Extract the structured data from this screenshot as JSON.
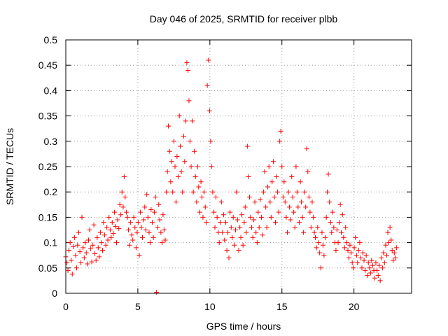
{
  "chart_data": {
    "type": "scatter",
    "title": "Day 046 of 2025, SRMTID for receiver plbb",
    "xlabel": "GPS time / hours",
    "ylabel": "SRMTID / TECUs",
    "xlim": [
      0,
      24
    ],
    "ylim": [
      0,
      0.5
    ],
    "xticks": [
      0,
      5,
      10,
      15,
      20
    ],
    "xtick_labels": [
      "0",
      "5",
      "10",
      "15",
      "20"
    ],
    "yticks": [
      0,
      0.05,
      0.1,
      0.15,
      0.2,
      0.25,
      0.3,
      0.35,
      0.4,
      0.45,
      0.5
    ],
    "ytick_labels": [
      "0",
      "0.05",
      "0.1",
      "0.15",
      "0.2",
      "0.25",
      "0.3",
      "0.35",
      "0.4",
      "0.45",
      "0.5"
    ],
    "grid": true,
    "marker": "+",
    "marker_color": "#ff0000",
    "series": [
      {
        "name": "SRMTID",
        "points": [
          [
            0.0,
            0.072
          ],
          [
            0.08,
            0.06
          ],
          [
            0.15,
            0.045
          ],
          [
            0.22,
            0.085
          ],
          [
            0.3,
            0.1
          ],
          [
            0.38,
            0.065
          ],
          [
            0.45,
            0.038
          ],
          [
            0.52,
            0.092
          ],
          [
            0.6,
            0.11
          ],
          [
            0.68,
            0.075
          ],
          [
            0.75,
            0.05
          ],
          [
            0.82,
            0.095
          ],
          [
            0.9,
            0.12
          ],
          [
            0.98,
            0.082
          ],
          [
            1.05,
            0.06
          ],
          [
            1.12,
            0.15
          ],
          [
            1.2,
            0.09
          ],
          [
            1.28,
            0.07
          ],
          [
            1.35,
            0.1
          ],
          [
            1.42,
            0.08
          ],
          [
            1.5,
            0.058
          ],
          [
            1.58,
            0.105
          ],
          [
            1.65,
            0.125
          ],
          [
            1.72,
            0.088
          ],
          [
            1.8,
            0.062
          ],
          [
            1.88,
            0.095
          ],
          [
            1.95,
            0.135
          ],
          [
            2.02,
            0.078
          ],
          [
            2.1,
            0.065
          ],
          [
            2.18,
            0.11
          ],
          [
            2.25,
            0.09
          ],
          [
            2.32,
            0.072
          ],
          [
            2.4,
            0.12
          ],
          [
            2.48,
            0.1
          ],
          [
            2.55,
            0.085
          ],
          [
            2.62,
            0.14
          ],
          [
            2.7,
            0.115
          ],
          [
            2.78,
            0.095
          ],
          [
            2.85,
            0.13
          ],
          [
            2.92,
            0.105
          ],
          [
            3.0,
            0.15
          ],
          [
            3.08,
            0.125
          ],
          [
            3.15,
            0.11
          ],
          [
            3.22,
            0.14
          ],
          [
            3.3,
            0.118
          ],
          [
            3.38,
            0.16
          ],
          [
            3.45,
            0.132
          ],
          [
            3.52,
            0.1
          ],
          [
            3.6,
            0.145
          ],
          [
            3.68,
            0.128
          ],
          [
            3.75,
            0.175
          ],
          [
            3.82,
            0.155
          ],
          [
            3.9,
            0.2
          ],
          [
            3.98,
            0.17
          ],
          [
            4.05,
            0.23
          ],
          [
            4.12,
            0.19
          ],
          [
            4.2,
            0.16
          ],
          [
            4.28,
            0.15
          ],
          [
            4.35,
            0.125
          ],
          [
            4.42,
            0.095
          ],
          [
            4.5,
            0.14
          ],
          [
            4.58,
            0.115
          ],
          [
            4.65,
            0.105
          ],
          [
            4.72,
            0.15
          ],
          [
            4.8,
            0.13
          ],
          [
            4.88,
            0.09
          ],
          [
            4.95,
            0.12
          ],
          [
            5.02,
            0.14
          ],
          [
            5.1,
            0.075
          ],
          [
            5.18,
            0.16
          ],
          [
            5.25,
            0.13
          ],
          [
            5.32,
            0.11
          ],
          [
            5.4,
            0.145
          ],
          [
            5.48,
            0.17
          ],
          [
            5.55,
            0.125
          ],
          [
            5.62,
            0.195
          ],
          [
            5.7,
            0.15
          ],
          [
            5.78,
            0.12
          ],
          [
            5.85,
            0.1
          ],
          [
            5.92,
            0.165
          ],
          [
            6.0,
            0.14
          ],
          [
            6.08,
            0.11
          ],
          [
            6.15,
            0.16
          ],
          [
            6.22,
            0.19
          ],
          [
            6.3,
            0.002
          ],
          [
            6.38,
            0.13
          ],
          [
            6.45,
            0.175
          ],
          [
            6.52,
            0.145
          ],
          [
            6.6,
            0.12
          ],
          [
            6.68,
            0.1
          ],
          [
            6.75,
            0.155
          ],
          [
            6.82,
            0.125
          ],
          [
            6.9,
            0.105
          ],
          [
            6.98,
            0.2
          ],
          [
            7.05,
            0.24
          ],
          [
            7.12,
            0.33
          ],
          [
            7.2,
            0.28
          ],
          [
            7.28,
            0.22
          ],
          [
            7.35,
            0.26
          ],
          [
            7.42,
            0.2
          ],
          [
            7.5,
            0.3
          ],
          [
            7.58,
            0.25
          ],
          [
            7.65,
            0.18
          ],
          [
            7.72,
            0.27
          ],
          [
            7.8,
            0.23
          ],
          [
            7.88,
            0.35
          ],
          [
            7.95,
            0.29
          ],
          [
            8.02,
            0.24
          ],
          [
            8.1,
            0.2
          ],
          [
            8.18,
            0.31
          ],
          [
            8.25,
            0.26
          ],
          [
            8.32,
            0.34
          ],
          [
            8.4,
            0.455
          ],
          [
            8.48,
            0.44
          ],
          [
            8.55,
            0.38
          ],
          [
            8.62,
            0.3
          ],
          [
            8.7,
            0.25
          ],
          [
            8.78,
            0.34
          ],
          [
            8.85,
            0.2
          ],
          [
            8.92,
            0.28
          ],
          [
            9.0,
            0.23
          ],
          [
            9.08,
            0.18
          ],
          [
            9.15,
            0.25
          ],
          [
            9.22,
            0.21
          ],
          [
            9.3,
            0.16
          ],
          [
            9.38,
            0.22
          ],
          [
            9.45,
            0.19
          ],
          [
            9.52,
            0.15
          ],
          [
            9.6,
            0.2
          ],
          [
            9.68,
            0.17
          ],
          [
            9.75,
            0.14
          ],
          [
            9.82,
            0.41
          ],
          [
            9.9,
            0.46
          ],
          [
            9.98,
            0.36
          ],
          [
            10.05,
            0.3
          ],
          [
            10.12,
            0.25
          ],
          [
            10.2,
            0.2
          ],
          [
            10.28,
            0.16
          ],
          [
            10.35,
            0.13
          ],
          [
            10.42,
            0.19
          ],
          [
            10.5,
            0.15
          ],
          [
            10.58,
            0.12
          ],
          [
            10.65,
            0.1
          ],
          [
            10.72,
            0.14
          ],
          [
            10.8,
            0.18
          ],
          [
            10.88,
            0.12
          ],
          [
            10.95,
            0.155
          ],
          [
            11.02,
            0.105
          ],
          [
            11.1,
            0.14
          ],
          [
            11.18,
            0.085
          ],
          [
            11.25,
            0.12
          ],
          [
            11.32,
            0.07
          ],
          [
            11.4,
            0.16
          ],
          [
            11.48,
            0.13
          ],
          [
            11.55,
            0.11
          ],
          [
            11.62,
            0.15
          ],
          [
            11.7,
            0.095
          ],
          [
            11.78,
            0.125
          ],
          [
            11.85,
            0.2
          ],
          [
            11.92,
            0.145
          ],
          [
            12.0,
            0.085
          ],
          [
            12.08,
            0.13
          ],
          [
            12.15,
            0.11
          ],
          [
            12.22,
            0.155
          ],
          [
            12.3,
            0.095
          ],
          [
            12.38,
            0.14
          ],
          [
            12.45,
            0.17
          ],
          [
            12.52,
            0.12
          ],
          [
            12.6,
            0.29
          ],
          [
            12.68,
            0.23
          ],
          [
            12.75,
            0.19
          ],
          [
            12.82,
            0.15
          ],
          [
            12.9,
            0.13
          ],
          [
            12.98,
            0.11
          ],
          [
            13.05,
            0.145
          ],
          [
            13.12,
            0.18
          ],
          [
            13.2,
            0.12
          ],
          [
            13.28,
            0.1
          ],
          [
            13.35,
            0.16
          ],
          [
            13.42,
            0.13
          ],
          [
            13.5,
            0.185
          ],
          [
            13.58,
            0.15
          ],
          [
            13.65,
            0.115
          ],
          [
            13.72,
            0.2
          ],
          [
            13.8,
            0.24
          ],
          [
            13.88,
            0.17
          ],
          [
            13.95,
            0.13
          ],
          [
            14.02,
            0.21
          ],
          [
            14.1,
            0.25
          ],
          [
            14.18,
            0.18
          ],
          [
            14.25,
            0.15
          ],
          [
            14.32,
            0.22
          ],
          [
            14.4,
            0.26
          ],
          [
            14.48,
            0.19
          ],
          [
            14.55,
            0.14
          ],
          [
            14.62,
            0.23
          ],
          [
            14.7,
            0.2
          ],
          [
            14.78,
            0.16
          ],
          [
            14.85,
            0.3
          ],
          [
            14.92,
            0.32
          ],
          [
            15.0,
            0.25
          ],
          [
            15.08,
            0.19
          ],
          [
            15.15,
            0.22
          ],
          [
            15.22,
            0.18
          ],
          [
            15.3,
            0.15
          ],
          [
            15.38,
            0.12
          ],
          [
            15.45,
            0.2
          ],
          [
            15.52,
            0.17
          ],
          [
            15.6,
            0.145
          ],
          [
            15.68,
            0.23
          ],
          [
            15.75,
            0.19
          ],
          [
            15.82,
            0.16
          ],
          [
            15.9,
            0.13
          ],
          [
            15.98,
            0.25
          ],
          [
            16.05,
            0.2
          ],
          [
            16.12,
            0.17
          ],
          [
            16.2,
            0.14
          ],
          [
            16.28,
            0.22
          ],
          [
            16.35,
            0.18
          ],
          [
            16.42,
            0.15
          ],
          [
            16.5,
            0.12
          ],
          [
            16.58,
            0.2
          ],
          [
            16.65,
            0.17
          ],
          [
            16.72,
            0.285
          ],
          [
            16.8,
            0.24
          ],
          [
            16.88,
            0.19
          ],
          [
            16.95,
            0.16
          ],
          [
            17.02,
            0.13
          ],
          [
            17.1,
            0.18
          ],
          [
            17.18,
            0.15
          ],
          [
            17.25,
            0.12
          ],
          [
            17.32,
            0.11
          ],
          [
            17.4,
            0.09
          ],
          [
            17.48,
            0.13
          ],
          [
            17.55,
            0.1
          ],
          [
            17.62,
            0.08
          ],
          [
            17.7,
            0.05
          ],
          [
            17.78,
            0.12
          ],
          [
            17.85,
            0.095
          ],
          [
            17.92,
            0.075
          ],
          [
            18.0,
            0.11
          ],
          [
            18.08,
            0.15
          ],
          [
            18.15,
            0.2
          ],
          [
            18.22,
            0.235
          ],
          [
            18.3,
            0.18
          ],
          [
            18.38,
            0.14
          ],
          [
            18.45,
            0.12
          ],
          [
            18.52,
            0.16
          ],
          [
            18.6,
            0.13
          ],
          [
            18.68,
            0.1
          ],
          [
            18.75,
            0.085
          ],
          [
            18.82,
            0.125
          ],
          [
            18.9,
            0.1
          ],
          [
            18.98,
            0.14
          ],
          [
            19.05,
            0.175
          ],
          [
            19.12,
            0.12
          ],
          [
            19.2,
            0.155
          ],
          [
            19.28,
            0.11
          ],
          [
            19.35,
            0.09
          ],
          [
            19.42,
            0.13
          ],
          [
            19.5,
            0.1
          ],
          [
            19.58,
            0.085
          ],
          [
            19.65,
            0.07
          ],
          [
            19.72,
            0.095
          ],
          [
            19.8,
            0.08
          ],
          [
            19.88,
            0.06
          ],
          [
            19.95,
            0.05
          ],
          [
            20.02,
            0.09
          ],
          [
            20.1,
            0.11
          ],
          [
            20.18,
            0.075
          ],
          [
            20.25,
            0.06
          ],
          [
            20.32,
            0.085
          ],
          [
            20.4,
            0.1
          ],
          [
            20.48,
            0.07
          ],
          [
            20.55,
            0.05
          ],
          [
            20.62,
            0.08
          ],
          [
            20.7,
            0.065
          ],
          [
            20.78,
            0.045
          ],
          [
            20.85,
            0.075
          ],
          [
            20.92,
            0.035
          ],
          [
            21.0,
            0.06
          ],
          [
            21.08,
            0.05
          ],
          [
            21.15,
            0.04
          ],
          [
            21.22,
            0.065
          ],
          [
            21.3,
            0.055
          ],
          [
            21.38,
            0.045
          ],
          [
            21.45,
            0.03
          ],
          [
            21.52,
            0.06
          ],
          [
            21.6,
            0.045
          ],
          [
            21.68,
            0.035
          ],
          [
            21.75,
            0.055
          ],
          [
            21.82,
            0.025
          ],
          [
            21.9,
            0.07
          ],
          [
            21.98,
            0.05
          ],
          [
            22.05,
            0.08
          ],
          [
            22.12,
            0.06
          ],
          [
            22.2,
            0.095
          ],
          [
            22.28,
            0.075
          ],
          [
            22.35,
            0.12
          ],
          [
            22.42,
            0.1
          ],
          [
            22.5,
            0.13
          ],
          [
            22.58,
            0.105
          ],
          [
            22.65,
            0.085
          ],
          [
            22.72,
            0.065
          ],
          [
            22.8,
            0.08
          ],
          [
            22.88,
            0.07
          ],
          [
            22.95,
            0.09
          ]
        ]
      }
    ]
  }
}
